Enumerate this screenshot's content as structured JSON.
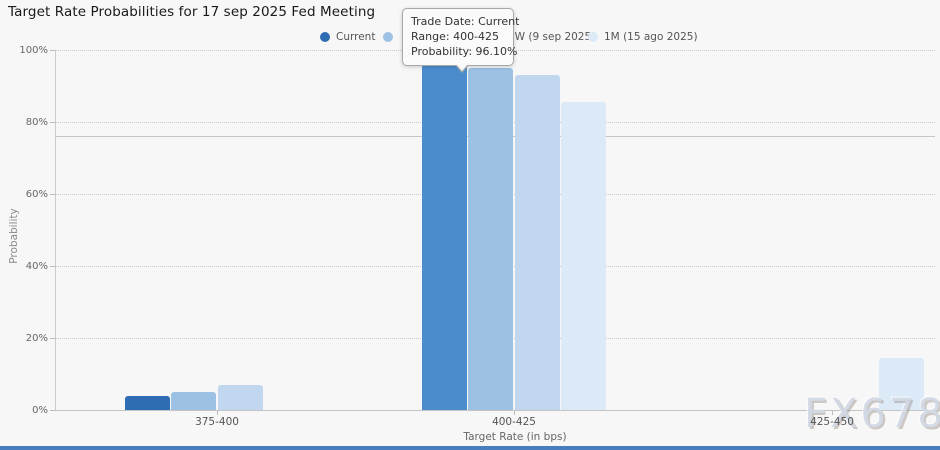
{
  "title": "Target Rate Probabilities for 17 sep 2025 Fed Meeting",
  "legend": {
    "items": [
      {
        "label": "Current",
        "color": "#2e6db4"
      },
      {
        "label": "",
        "color": "#9cc1e5"
      },
      {
        "label": "1W (9 sep 2025)",
        "color": "#c1d7ef"
      },
      {
        "label": "1M (15 ago 2025)",
        "color": "#dceaf7"
      }
    ]
  },
  "tooltip": {
    "lines": [
      "Trade Date: Current",
      "Range: 400-425",
      "Probability: 96.10%"
    ]
  },
  "watermark": "FX678",
  "footer_bar_color": "#4a7dbd",
  "chart_data": {
    "type": "bar",
    "title": "Target Rate Probabilities for 17 sep 2025 Fed Meeting",
    "xlabel": "Target Rate (in bps)",
    "ylabel": "Probability",
    "categories": [
      "375-400",
      "400-425",
      "425-450"
    ],
    "series": [
      {
        "name": "Current",
        "color": "#2e6db4",
        "values": [
          3.9,
          96.1,
          0
        ]
      },
      {
        "name": "",
        "color": "#9cc1e5",
        "values": [
          5.0,
          95.0,
          0
        ]
      },
      {
        "name": "1W (9 sep 2025)",
        "color": "#c1d7ef",
        "values": [
          7.0,
          93.0,
          0
        ]
      },
      {
        "name": "1M (15 ago 2025)",
        "color": "#dceaf7",
        "values": [
          0,
          85.5,
          14.5
        ]
      }
    ],
    "yticks": [
      0,
      20,
      40,
      60,
      80,
      100
    ],
    "ytick_labels": [
      "0%",
      "20%",
      "40%",
      "60%",
      "80%",
      "100%"
    ],
    "ylim": [
      0,
      100
    ],
    "grid": "horizontal-dotted",
    "legend_position": "top",
    "reference_line_percent": 76,
    "highlighted": {
      "series": "Current",
      "category": "400-425",
      "hover_color": "#4a8ccc"
    }
  }
}
